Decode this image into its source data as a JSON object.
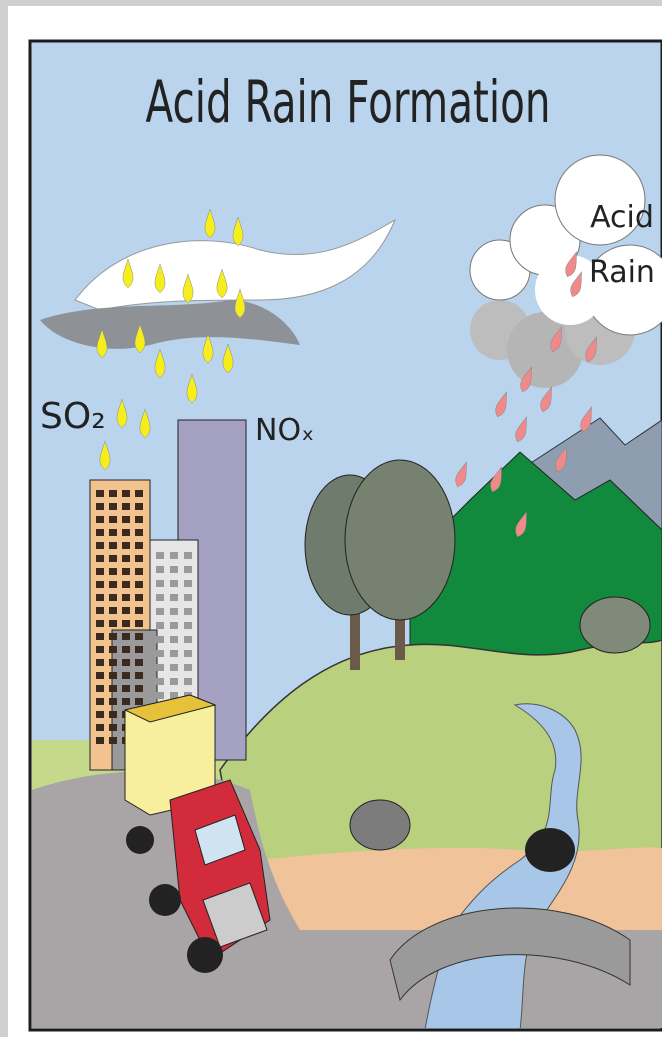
{
  "title": "Acid Rain Formation",
  "labels": {
    "so2": "SO₂",
    "nox": "NOₓ",
    "acid_rain": [
      "Acid",
      "Rain"
    ]
  }
}
